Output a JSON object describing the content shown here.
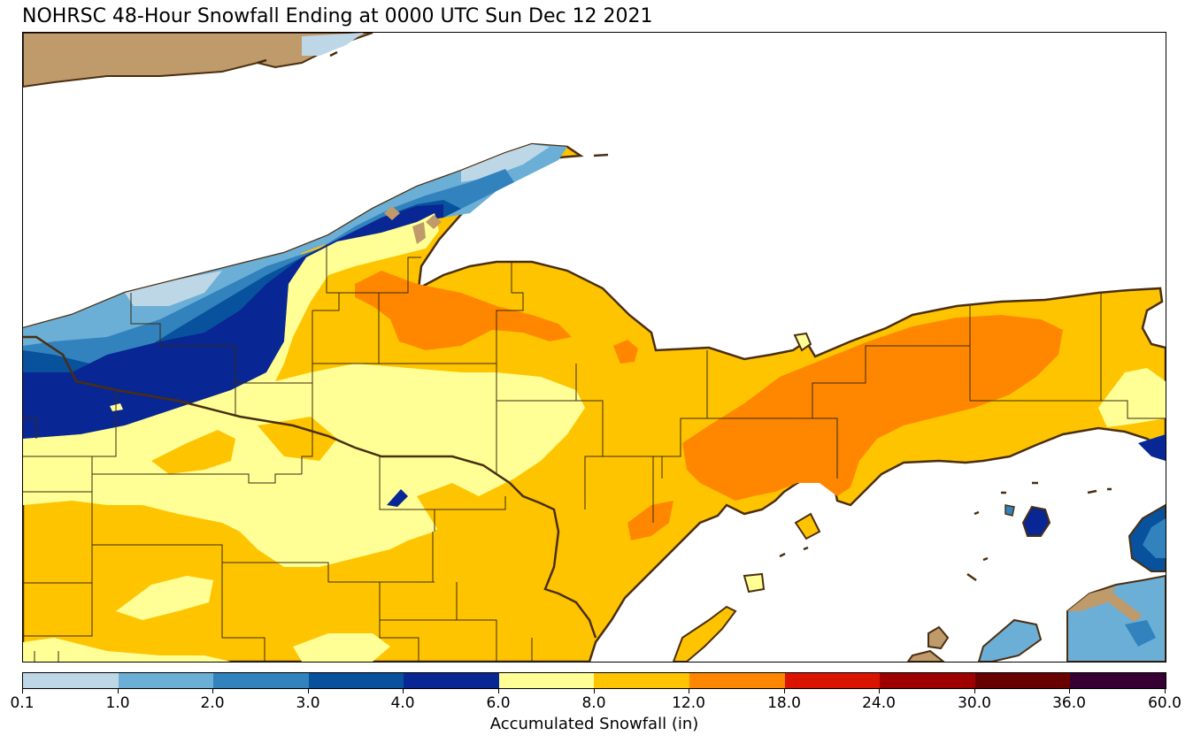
{
  "title": "NOHRSC 48-Hour Snowfall Ending at 0000 UTC Sun Dec 12 2021",
  "map": {
    "colors": {
      "water": "#ffffff",
      "land_no_snow": "#bf9a6a",
      "coastline": "#4a2e10",
      "boundary": "#3a2a10"
    }
  },
  "legend": {
    "title": "Accumulated Snowfall (in)",
    "ticks": [
      "0.1",
      "1.0",
      "2.0",
      "3.0",
      "4.0",
      "6.0",
      "8.0",
      "12.0",
      "18.0",
      "24.0",
      "30.0",
      "36.0",
      "60.0"
    ],
    "bins": [
      {
        "range": "0.1-1.0",
        "color": "#bdd7e7"
      },
      {
        "range": "1.0-2.0",
        "color": "#6baed6"
      },
      {
        "range": "2.0-3.0",
        "color": "#3182bd"
      },
      {
        "range": "3.0-4.0",
        "color": "#08519c"
      },
      {
        "range": "4.0-6.0",
        "color": "#082694"
      },
      {
        "range": "6.0-8.0",
        "color": "#ffff96"
      },
      {
        "range": "8.0-12.0",
        "color": "#ffc400"
      },
      {
        "range": "12.0-18.0",
        "color": "#ff8700"
      },
      {
        "range": "18.0-24.0",
        "color": "#db1400"
      },
      {
        "range": "24.0-30.0",
        "color": "#9e0000"
      },
      {
        "range": "30.0-36.0",
        "color": "#690000"
      },
      {
        "range": "36.0-60.0",
        "color": "#360033"
      }
    ]
  }
}
